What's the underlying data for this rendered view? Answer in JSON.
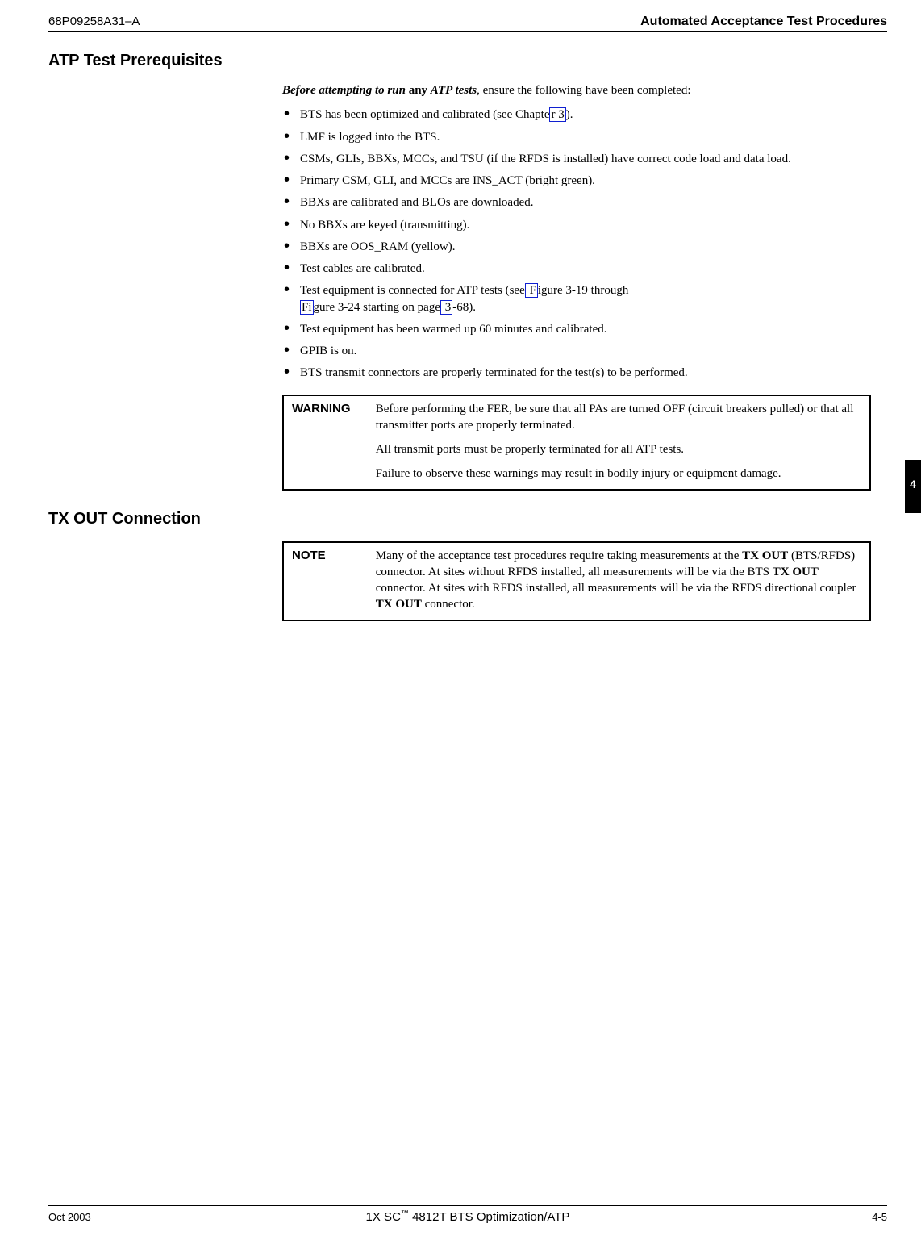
{
  "header": {
    "doc_no": "68P09258A31–A",
    "title": "Automated Acceptance Test Procedures"
  },
  "side_tab": {
    "number": "4"
  },
  "section1": {
    "heading": "ATP Test Prerequisites",
    "intro_prefix": "Before attempting to run",
    "intro_mid": " any ",
    "intro_suffix": "ATP tests",
    "intro_rest": ", ensure the following have been completed:",
    "bullets": {
      "b1": {
        "pre": "BTS has been optimized and calibrated (see Chapte",
        "link": "r 3",
        "post": ")."
      },
      "b2": "LMF is logged into the BTS.",
      "b3": "CSMs, GLIs, BBXs, MCCs, and TSU (if the RFDS is installed) have correct code load and data load.",
      "b4": "Primary CSM, GLI, and MCCs are INS_ACT (bright green).",
      "b5": "BBXs are calibrated and BLOs are downloaded.",
      "b6": "No BBXs are keyed (transmitting).",
      "b7": "BBXs are OOS_RAM (yellow).",
      "b8": "Test cables are calibrated.",
      "b9": {
        "pre": "Test equipment is connected for ATP tests (see",
        "link1": " F",
        "mid1": "igure 3-19 through",
        "link2": " Fi",
        "mid2": "gure 3-24 starting on page",
        "link3": " 3",
        "post": "-68)."
      },
      "b10": "Test equipment has been warmed up 60 minutes and calibrated.",
      "b11": "GPIB is on.",
      "b12": "BTS transmit connectors are properly terminated for the test(s) to be performed."
    },
    "warning": {
      "label": "WARNING",
      "p1": "Before performing the FER, be sure that all PAs are turned OFF (circuit breakers pulled) or that all transmitter ports are properly terminated.",
      "p2": "All transmit ports must be properly terminated for all ATP tests.",
      "p3": "Failure to observe these warnings may result in bodily injury or equipment damage."
    }
  },
  "section2": {
    "heading": "TX OUT Connection",
    "note": {
      "label": "NOTE",
      "t1": "Many of the acceptance test procedures require taking measurements at the ",
      "b1": "TX OUT",
      "t2": " (BTS/RFDS) connector. At sites without RFDS installed, all measurements will be via the BTS ",
      "b2": "TX OUT",
      "t3": " connector. At sites with RFDS installed, all measurements will be via the RFDS directional coupler ",
      "b3": "TX OUT",
      "t4": " connector."
    }
  },
  "footer": {
    "left": "Oct 2003",
    "center_pre": "1X SC",
    "center_tm": "™",
    "center_post": " 4812T BTS Optimization/ATP",
    "right": "4-5"
  }
}
